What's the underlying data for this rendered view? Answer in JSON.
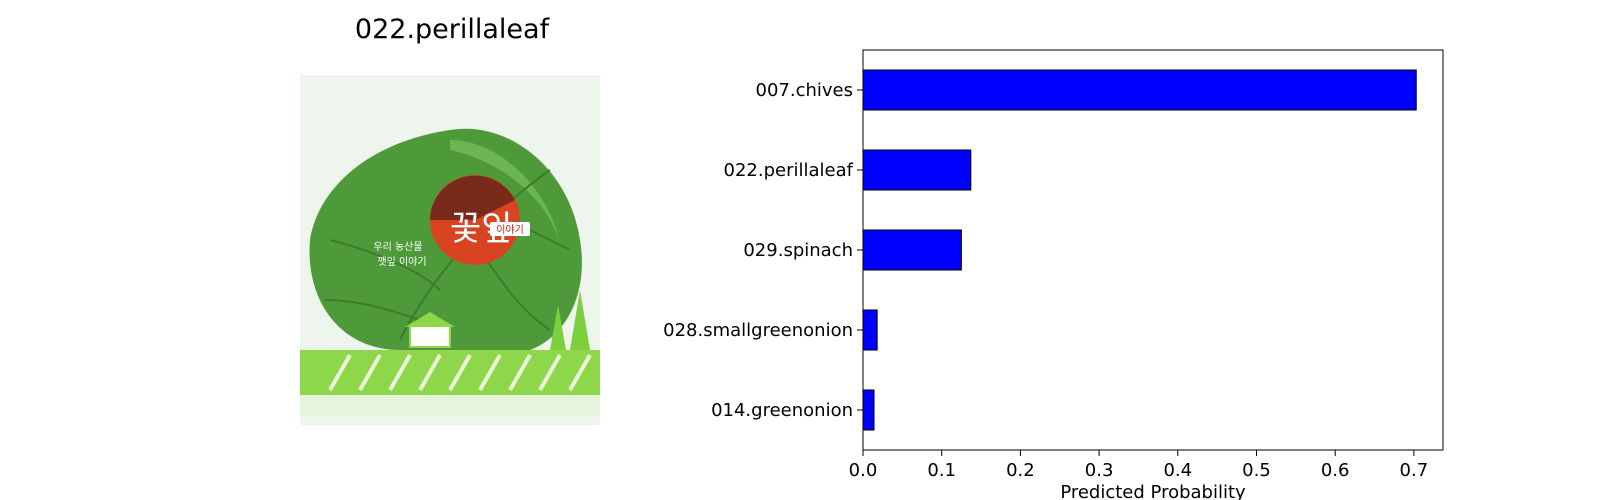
{
  "image_panel": {
    "title": "022.perillaleaf",
    "photo_text": {
      "brand": "꽃잎",
      "badge": "이야기",
      "caption_line1": "우리 농산물",
      "caption_line2": "깻잎 이야기"
    }
  },
  "chart_data": {
    "type": "bar",
    "orientation": "horizontal",
    "categories": [
      "007.chives",
      "022.perillaleaf",
      "029.spinach",
      "028.smallgreenonion",
      "014.greenonion"
    ],
    "values": [
      0.703,
      0.137,
      0.125,
      0.018,
      0.014
    ],
    "xlabel": "Predicted Probability",
    "ylabel": "",
    "xlim": [
      0,
      0.737
    ],
    "xticks": [
      0.0,
      0.1,
      0.2,
      0.3,
      0.4,
      0.5,
      0.6,
      0.7
    ],
    "xtick_labels": [
      "0.0",
      "0.1",
      "0.2",
      "0.3",
      "0.4",
      "0.5",
      "0.6",
      "0.7"
    ],
    "bar_color": "#0000ff",
    "edge_color": "#000000",
    "grid": false
  }
}
